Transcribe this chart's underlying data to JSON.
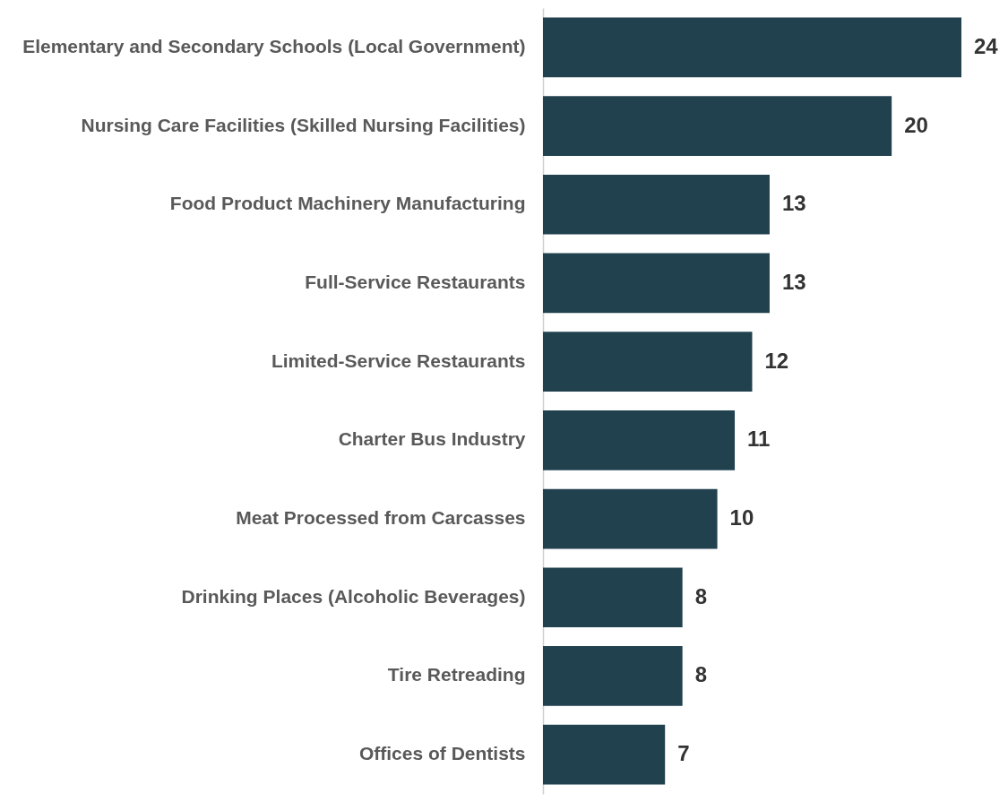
{
  "chart_data": {
    "type": "bar",
    "orientation": "horizontal",
    "data_labels": true,
    "color": "#21414f",
    "categories": [
      "Elementary and Secondary Schools (Local Government)",
      "Nursing Care Facilities (Skilled Nursing Facilities)",
      "Food Product Machinery Manufacturing",
      "Full-Service Restaurants",
      "Limited-Service Restaurants",
      "Charter Bus Industry",
      "Meat Processed from Carcasses",
      "Drinking Places (Alcoholic Beverages)",
      "Tire Retreading",
      "Offices of Dentists"
    ],
    "values": [
      24,
      20,
      13,
      13,
      12,
      11,
      10,
      8,
      8,
      7
    ]
  }
}
